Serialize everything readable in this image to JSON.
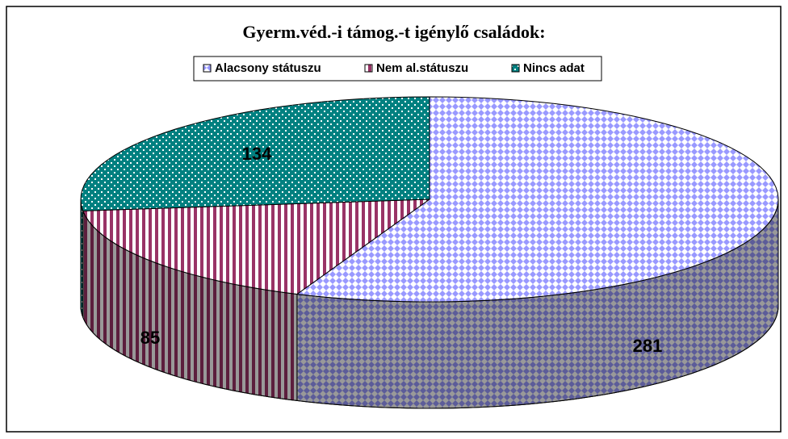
{
  "chart_data": {
    "type": "pie3d",
    "title": "Gyerm.véd.-i támog.-t igénylő családok:",
    "categories": [
      "Alacsony státuszu",
      "Nem al.státuszu",
      "Nincs adat"
    ],
    "values": [
      281,
      85,
      134
    ],
    "colors": [
      "#9999ff",
      "#993366",
      "#008080"
    ],
    "legend": "top"
  }
}
